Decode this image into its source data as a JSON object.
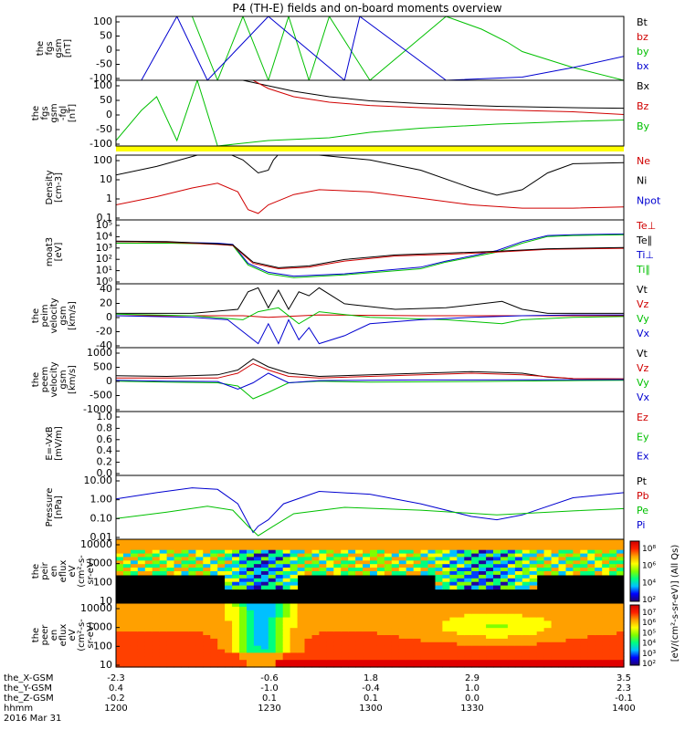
{
  "title": "P4 (TH-E) fields and on-board moments overview",
  "chart_data": [
    {
      "type": "line",
      "ylabel": [
        "the",
        "fgs",
        "gsm",
        "[nT]"
      ],
      "ylim": [
        -100,
        100
      ],
      "yticks": [
        "100",
        "50",
        "0",
        "-50",
        "-100"
      ],
      "legend": [
        {
          "name": "Bt",
          "color": "#000000"
        },
        {
          "name": "bz",
          "color": "#d00000"
        },
        {
          "name": "by",
          "color": "#00c000"
        },
        {
          "name": "bx",
          "color": "#0000d0"
        }
      ],
      "series": [
        {
          "name": "by",
          "color": "#00c000",
          "x": [
            0.15,
            0.2,
            0.25,
            0.3,
            0.34,
            0.38,
            0.42,
            0.5,
            0.65,
            0.72,
            0.77,
            0.8,
            0.9,
            1.0
          ],
          "y": [
            100,
            -100,
            100,
            -100,
            100,
            -100,
            100,
            -100,
            100,
            60,
            20,
            -10,
            -60,
            -100
          ]
        },
        {
          "name": "bx",
          "color": "#0000d0",
          "x": [
            0.05,
            0.12,
            0.18,
            0.3,
            0.45,
            0.48,
            0.65,
            0.8,
            0.9,
            1.0
          ],
          "y": [
            -100,
            100,
            -100,
            100,
            -100,
            100,
            -100,
            -90,
            -60,
            -25
          ]
        }
      ]
    },
    {
      "type": "line",
      "ylabel": [
        "the",
        "fgs",
        "gsm",
        "-fgl",
        "[nT]"
      ],
      "ylim": [
        -120,
        120
      ],
      "yticks": [
        "100",
        "50",
        "0",
        "-50",
        "-100"
      ],
      "legend": [
        {
          "name": "Bx",
          "color": "#000000"
        },
        {
          "name": "Bz",
          "color": "#d00000"
        },
        {
          "name": "By",
          "color": "#00c000"
        }
      ],
      "series": [
        {
          "name": "Bx",
          "color": "#000000",
          "x": [
            0.25,
            0.3,
            0.35,
            0.42,
            0.5,
            0.6,
            0.75,
            0.9,
            1.0
          ],
          "y": [
            120,
            100,
            80,
            60,
            45,
            35,
            25,
            20,
            18
          ]
        },
        {
          "name": "Bz",
          "color": "#d00000",
          "x": [
            0.27,
            0.3,
            0.35,
            0.42,
            0.5,
            0.6,
            0.75,
            0.9,
            1.0
          ],
          "y": [
            120,
            90,
            60,
            40,
            28,
            20,
            12,
            5,
            -5
          ]
        },
        {
          "name": "By",
          "color": "#00c000",
          "x": [
            0.0,
            0.05,
            0.08,
            0.12,
            0.16,
            0.2,
            0.3,
            0.42,
            0.5,
            0.6,
            0.75,
            0.9,
            1.0
          ],
          "y": [
            -100,
            10,
            60,
            -100,
            120,
            -120,
            -100,
            -90,
            -70,
            -55,
            -40,
            -30,
            -25
          ]
        }
      ]
    },
    {
      "type": "line",
      "ylabel": [
        "Density",
        "[cm-3]"
      ],
      "log": true,
      "ylim": [
        0.1,
        100
      ],
      "yticks": [
        "100",
        "10",
        "1",
        "0.1"
      ],
      "legend": [
        {
          "name": "Ne",
          "color": "#d00000"
        },
        {
          "name": "Ni",
          "color": "#000000"
        },
        {
          "name": "Npot",
          "color": "#0000d0"
        }
      ],
      "series": [
        {
          "name": "Ni",
          "color": "#000000",
          "x": [
            0,
            0.08,
            0.16,
            0.22,
            0.25,
            0.28,
            0.3,
            0.31,
            0.33,
            0.4,
            0.5,
            0.6,
            0.7,
            0.75,
            0.8,
            0.85,
            0.9,
            1.0
          ],
          "y": [
            12,
            30,
            100,
            120,
            60,
            15,
            20,
            60,
            200,
            100,
            60,
            20,
            3,
            1.4,
            2.5,
            15,
            40,
            45
          ]
        },
        {
          "name": "Ne",
          "color": "#d00000",
          "x": [
            0,
            0.08,
            0.15,
            0.2,
            0.24,
            0.26,
            0.28,
            0.3,
            0.35,
            0.4,
            0.5,
            0.6,
            0.7,
            0.8,
            0.9,
            1.0
          ],
          "y": [
            0.5,
            1.2,
            3,
            5,
            2,
            0.3,
            0.2,
            0.5,
            1.5,
            2.5,
            2,
            1,
            0.5,
            0.35,
            0.35,
            0.4
          ]
        }
      ]
    },
    {
      "type": "line",
      "ylabel": [
        "moat3",
        "[eV]"
      ],
      "log": true,
      "ylim": [
        1,
        100000
      ],
      "yticks": [
        "10⁵",
        "10⁴",
        "10³",
        "10²",
        "10¹",
        "10⁰"
      ],
      "legend": [
        {
          "name": "Te⊥",
          "color": "#d00000"
        },
        {
          "name": "Te∥",
          "color": "#000000"
        },
        {
          "name": "Ti⊥",
          "color": "#0000d0"
        },
        {
          "name": "Ti∥",
          "color": "#00c000"
        }
      ],
      "series": [
        {
          "name": "Ti⊥",
          "color": "#0000d0",
          "x": [
            0,
            0.1,
            0.2,
            0.23,
            0.26,
            0.3,
            0.35,
            0.45,
            0.6,
            0.65,
            0.7,
            0.75,
            0.8,
            0.85,
            0.9,
            1.0
          ],
          "y": [
            2000,
            1800,
            1500,
            1200,
            40,
            8,
            4,
            6,
            20,
            60,
            150,
            400,
            2000,
            6000,
            7000,
            8000
          ]
        },
        {
          "name": "Ti∥",
          "color": "#00c000",
          "x": [
            0,
            0.1,
            0.2,
            0.23,
            0.26,
            0.3,
            0.35,
            0.45,
            0.6,
            0.65,
            0.7,
            0.75,
            0.8,
            0.85,
            0.9,
            1.0
          ],
          "y": [
            1500,
            1500,
            1300,
            1000,
            30,
            6,
            3,
            5,
            15,
            50,
            120,
            300,
            1500,
            5000,
            6000,
            7000
          ]
        },
        {
          "name": "Te⊥",
          "color": "#d00000",
          "x": [
            0,
            0.1,
            0.2,
            0.23,
            0.27,
            0.32,
            0.38,
            0.45,
            0.55,
            0.65,
            0.75,
            0.85,
            1.0
          ],
          "y": [
            2000,
            1800,
            1200,
            1000,
            40,
            15,
            20,
            60,
            150,
            200,
            300,
            500,
            600
          ]
        },
        {
          "name": "Te∥",
          "color": "#000000",
          "x": [
            0,
            0.1,
            0.2,
            0.23,
            0.27,
            0.32,
            0.38,
            0.45,
            0.55,
            0.65,
            0.75,
            0.85,
            1.0
          ],
          "y": [
            2200,
            2000,
            1300,
            1100,
            50,
            18,
            25,
            80,
            180,
            250,
            350,
            550,
            700
          ]
        }
      ]
    },
    {
      "type": "line",
      "ylabel": [
        "the",
        "peim",
        "velocity",
        "gsm",
        "[km/s]"
      ],
      "ylim": [
        -40,
        40
      ],
      "yticks": [
        "40",
        "20",
        "0",
        "-20",
        "-40"
      ],
      "legend": [
        {
          "name": "Vt",
          "color": "#000000"
        },
        {
          "name": "Vz",
          "color": "#d00000"
        },
        {
          "name": "Vy",
          "color": "#00c000"
        },
        {
          "name": "Vx",
          "color": "#0000d0"
        }
      ],
      "series": [
        {
          "name": "Vt",
          "color": "#000000",
          "x": [
            0,
            0.15,
            0.24,
            0.26,
            0.28,
            0.3,
            0.32,
            0.34,
            0.36,
            0.38,
            0.4,
            0.45,
            0.55,
            0.65,
            0.72,
            0.76,
            0.8,
            0.85,
            1.0
          ],
          "y": [
            3,
            3,
            8,
            30,
            35,
            10,
            32,
            8,
            30,
            25,
            35,
            15,
            8,
            10,
            15,
            18,
            8,
            3,
            3
          ]
        },
        {
          "name": "Vz",
          "color": "#d00000",
          "x": [
            0,
            0.25,
            0.3,
            0.4,
            0.6,
            0.8,
            1.0
          ],
          "y": [
            0,
            0,
            -2,
            1,
            0,
            0,
            0
          ]
        },
        {
          "name": "Vy",
          "color": "#00c000",
          "x": [
            0,
            0.15,
            0.25,
            0.28,
            0.32,
            0.36,
            0.4,
            0.5,
            0.65,
            0.76,
            0.8,
            0.9,
            1.0
          ],
          "y": [
            2,
            0,
            -5,
            5,
            10,
            -10,
            5,
            -2,
            -5,
            -10,
            -5,
            -2,
            -1
          ]
        },
        {
          "name": "Vx",
          "color": "#0000d0",
          "x": [
            0,
            0.15,
            0.22,
            0.26,
            0.28,
            0.3,
            0.32,
            0.34,
            0.36,
            0.38,
            0.4,
            0.45,
            0.5,
            0.6,
            0.7,
            0.8,
            0.9,
            1.0
          ],
          "y": [
            0,
            -2,
            -5,
            -25,
            -35,
            -10,
            -35,
            -5,
            -30,
            -15,
            -35,
            -25,
            -10,
            -5,
            -2,
            0,
            1,
            1
          ]
        }
      ]
    },
    {
      "type": "line",
      "ylabel": [
        "the",
        "peem",
        "velocity",
        "gsm",
        "[km/s]"
      ],
      "ylim": [
        -1000,
        1000
      ],
      "yticks": [
        "1000",
        "500",
        "0",
        "-500",
        "-1000"
      ],
      "legend": [
        {
          "name": "Vt",
          "color": "#000000"
        },
        {
          "name": "Vz",
          "color": "#d00000"
        },
        {
          "name": "Vy",
          "color": "#00c000"
        },
        {
          "name": "Vx",
          "color": "#0000d0"
        }
      ],
      "series": [
        {
          "name": "Vt",
          "color": "#000000",
          "x": [
            0,
            0.1,
            0.2,
            0.24,
            0.27,
            0.3,
            0.34,
            0.4,
            0.5,
            0.6,
            0.7,
            0.8,
            0.85,
            0.9,
            1.0
          ],
          "y": [
            120,
            100,
            150,
            300,
            650,
            400,
            200,
            100,
            150,
            200,
            250,
            200,
            80,
            30,
            20
          ]
        },
        {
          "name": "Vz",
          "color": "#d00000",
          "x": [
            0,
            0.2,
            0.24,
            0.27,
            0.3,
            0.34,
            0.4,
            0.6,
            0.7,
            0.8,
            0.9,
            1.0
          ],
          "y": [
            50,
            50,
            200,
            500,
            300,
            100,
            50,
            150,
            200,
            150,
            30,
            20
          ]
        },
        {
          "name": "Vy",
          "color": "#00c000",
          "x": [
            0,
            0.1,
            0.2,
            0.24,
            0.27,
            0.3,
            0.34,
            0.4,
            0.5,
            0.7,
            0.9,
            1.0
          ],
          "y": [
            -50,
            -80,
            -100,
            -200,
            -600,
            -400,
            -100,
            -50,
            -80,
            -60,
            -30,
            -20
          ]
        },
        {
          "name": "Vx",
          "color": "#0000d0",
          "x": [
            0,
            0.1,
            0.2,
            0.24,
            0.27,
            0.3,
            0.34,
            0.4,
            0.6,
            0.8,
            1.0
          ],
          "y": [
            -20,
            -50,
            -60,
            -300,
            -100,
            200,
            -100,
            -30,
            -10,
            -5,
            0
          ]
        }
      ]
    },
    {
      "type": "line",
      "ylabel": [
        "E=-VxB",
        "[mV/m]"
      ],
      "ylim": [
        0,
        1
      ],
      "yticks": [
        "1.0",
        "0.8",
        "0.6",
        "0.4",
        "0.2",
        "0.0"
      ],
      "legend": [
        {
          "name": "Ez",
          "color": "#d00000"
        },
        {
          "name": "Ey",
          "color": "#00c000"
        },
        {
          "name": "Ex",
          "color": "#0000d0"
        }
      ],
      "series": []
    },
    {
      "type": "line",
      "ylabel": [
        "Pressure",
        "[nPa]"
      ],
      "log": true,
      "ylim": [
        0.003,
        30
      ],
      "yticks": [
        "10.00",
        "1.00",
        "0.10",
        "0.01"
      ],
      "legend": [
        {
          "name": "Pt",
          "color": "#000000"
        },
        {
          "name": "Pb",
          "color": "#d00000"
        },
        {
          "name": "Pe",
          "color": "#00c000"
        },
        {
          "name": "Pi",
          "color": "#0000d0"
        }
      ],
      "series": [
        {
          "name": "Pi",
          "color": "#0000d0",
          "x": [
            0,
            0.08,
            0.15,
            0.2,
            0.24,
            0.27,
            0.28,
            0.3,
            0.33,
            0.4,
            0.5,
            0.6,
            0.7,
            0.75,
            0.8,
            0.9,
            1.0
          ],
          "y": [
            1.0,
            2.5,
            5,
            4,
            0.5,
            0.008,
            0.02,
            0.05,
            0.5,
            3,
            2,
            0.5,
            0.08,
            0.05,
            0.1,
            1.2,
            2.5
          ]
        },
        {
          "name": "Pe",
          "color": "#00c000",
          "x": [
            0,
            0.1,
            0.18,
            0.23,
            0.26,
            0.28,
            0.31,
            0.35,
            0.45,
            0.6,
            0.75,
            0.9,
            1.0
          ],
          "y": [
            0.06,
            0.15,
            0.35,
            0.2,
            0.02,
            0.005,
            0.02,
            0.12,
            0.3,
            0.2,
            0.1,
            0.18,
            0.25
          ]
        }
      ]
    },
    {
      "type": "heatmap",
      "ylabel": [
        "the",
        "peir",
        "en",
        "eflux",
        "eV",
        "(cm²-s-",
        "sr-eV)"
      ],
      "log": true,
      "ylim": [
        5,
        30000
      ],
      "yticks": [
        "10000",
        "1000",
        "100",
        "10"
      ]
    },
    {
      "type": "heatmap",
      "ylabel": [
        "the",
        "peer",
        "en",
        "eflux",
        "eV",
        "(cm²-s-",
        "sr-eV)"
      ],
      "log": true,
      "ylim": [
        5,
        30000
      ],
      "yticks": [
        "10000",
        "1000",
        "100",
        "10"
      ]
    }
  ],
  "sidebar_labels": [
    "",
    "",
    "",
    "",
    "",
    "",
    "",
    "",
    "",
    ""
  ],
  "colorbar": {
    "ticks1": [
      "10⁸",
      "10⁶",
      "10⁴",
      "10²"
    ],
    "ticks2": [
      "10⁷",
      "10⁶",
      "10⁵",
      "10⁴",
      "10³",
      "10²"
    ],
    "label": "[eV/(cm²-s-sr-eV)] (All Qs)"
  },
  "x_axis": {
    "row_labels": [
      "the_X-GSM",
      "the_Y-GSM",
      "the_Z-GSM",
      "hhmm",
      "2016 Mar 31"
    ],
    "columns": [
      [
        "-2.3",
        "0.4",
        "-0.2",
        "1200"
      ],
      [
        "-0.6",
        "-1.0",
        "0.1",
        "1230"
      ],
      [
        "1.8",
        "-0.4",
        "0.1",
        "1300"
      ],
      [
        "2.9",
        "1.0",
        "0.0",
        "1330"
      ],
      [
        "3.5",
        "2.3",
        "-0.1",
        "1400"
      ]
    ]
  }
}
